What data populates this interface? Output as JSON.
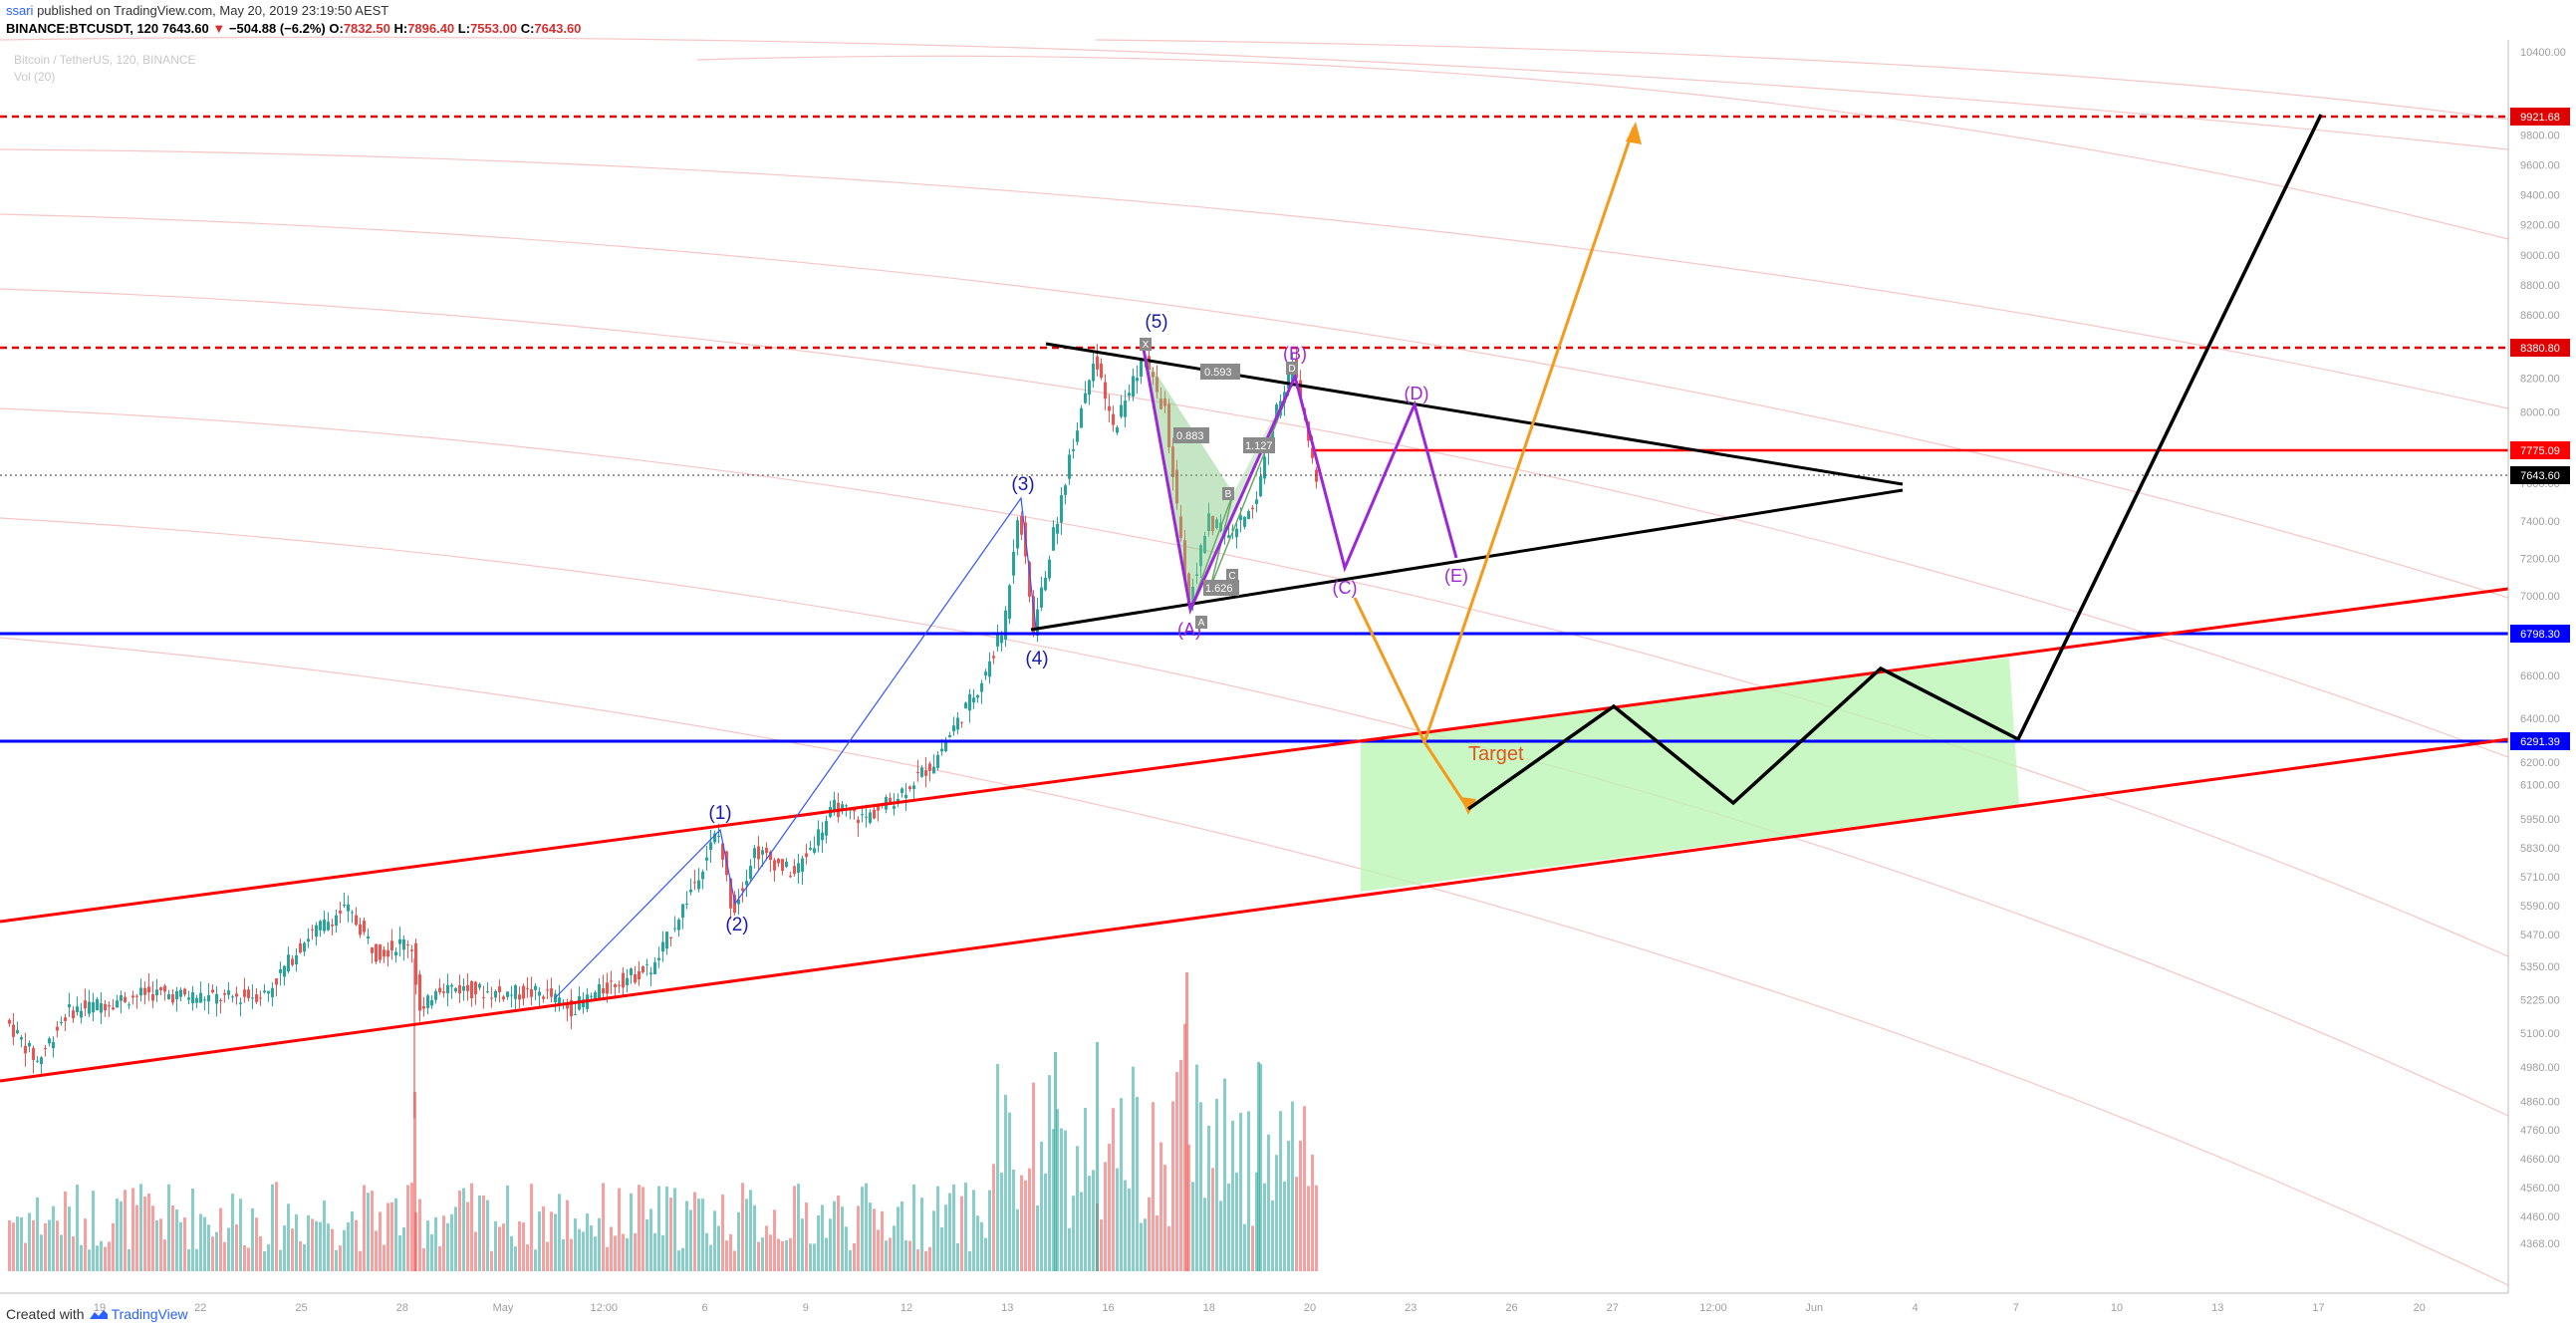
{
  "header": {
    "publisher_user": "ssari",
    "publisher_rest": " published on TradingView.com, May 20, 2019 23:19:50 AEST",
    "symbol": "BINANCE:BTCUSDT, 120",
    "price": "7643.60",
    "change": "−504.88 (−6.2%)",
    "o_label": "O:",
    "o_val": "7832.50",
    "h_label": "H:",
    "h_val": "7896.40",
    "l_label": "L:",
    "l_val": "7553.00",
    "c_label": "C:",
    "c_val": "7643.60"
  },
  "legend": {
    "title": "Bitcoin / TetherUS, 120, BINANCE",
    "vol": "Vol (20)"
  },
  "footer": {
    "created_with": "Created with",
    "brand": "TradingView"
  },
  "colors": {
    "up": "#26a69a",
    "down": "#ef5350",
    "red_line": "#ff0000",
    "blue_line": "#0000ff",
    "orange": "#f5a623",
    "purple": "#9c27b0",
    "wave_label": "#1a1aa8",
    "target_zone": "#b8f5b0"
  },
  "chart_data": {
    "type": "candlestick",
    "title": "Bitcoin / TetherUS, 120, BINANCE",
    "y_axis": {
      "range": [
        4250,
        10600
      ],
      "ticks": [
        "10400.00",
        "9800.00",
        "9600.00",
        "9400.00",
        "9200.00",
        "9000.00",
        "8800.00",
        "8600.00",
        "8400.00",
        "8200.00",
        "8000.00",
        "7600.00",
        "7400.00",
        "7200.00",
        "7000.00",
        "6800.00",
        "6600.00",
        "6400.00",
        "6200.00",
        "6100.00",
        "5950.00",
        "5830.00",
        "5710.00",
        "5590.00",
        "5470.00",
        "5350.00",
        "5225.00",
        "5100.00",
        "4980.00",
        "4860.00",
        "4760.00",
        "4660.00",
        "4560.00",
        "4460.00",
        "4368.00"
      ]
    },
    "x_axis": {
      "ticks": [
        "19",
        "22",
        "25",
        "28",
        "May",
        "12:00",
        "6",
        "9",
        "12",
        "13",
        "16",
        "18",
        "20",
        "23",
        "26",
        "27",
        "12:00",
        "Jun",
        "4",
        "7",
        "10",
        "13",
        "17",
        "20"
      ]
    },
    "price_tags": [
      {
        "value": "9921.68",
        "style": "red-dashed"
      },
      {
        "value": "8380.80",
        "style": "red-dashed"
      },
      {
        "value": "7775.09",
        "style": "red-solid"
      },
      {
        "value": "7643.60",
        "style": "current-price"
      },
      {
        "value": "6798.30",
        "style": "blue-solid"
      },
      {
        "value": "6291.39",
        "style": "blue-solid"
      }
    ],
    "elliott_waves": [
      "(1)",
      "(2)",
      "(3)",
      "(4)",
      "(5)"
    ],
    "triangle_waves": [
      "(A)",
      "(B)",
      "(C)",
      "(D)",
      "(E)"
    ],
    "fib_labels": [
      "0.593",
      "0.883",
      "1.127",
      "1.626"
    ],
    "harmonic_labels": [
      "X",
      "A",
      "B",
      "C",
      "D"
    ],
    "annotations": [
      "Target"
    ],
    "volume_series": "Vol (20)"
  }
}
